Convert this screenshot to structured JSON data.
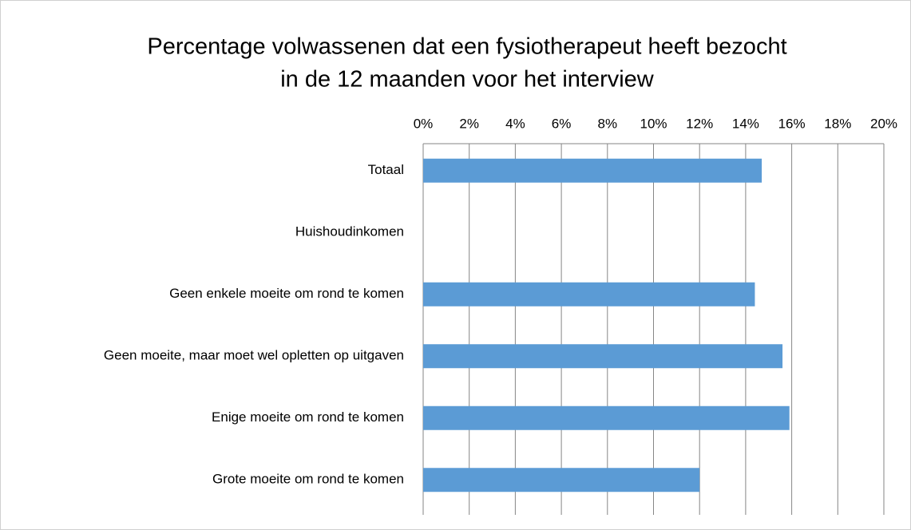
{
  "chart_data": {
    "type": "bar",
    "orientation": "horizontal",
    "title": [
      "Percentage volwassenen dat een fysiotherapeut heeft bezocht",
      "in de 12 maanden voor het interview"
    ],
    "categories": [
      "Totaal",
      "Huishoudinkomen",
      "Geen enkele moeite om rond te komen",
      "Geen moeite, maar moet wel opletten op uitgaven",
      "Enige moeite om rond te komen",
      "Grote moeite om rond te komen"
    ],
    "values": [
      14.7,
      null,
      14.4,
      15.6,
      15.9,
      12.0
    ],
    "color": "#5b9bd5",
    "xlim": [
      0,
      20
    ],
    "xticks": [
      {
        "value": 0,
        "label": "0%"
      },
      {
        "value": 2,
        "label": "2%"
      },
      {
        "value": 4,
        "label": "4%"
      },
      {
        "value": 6,
        "label": "6%"
      },
      {
        "value": 8,
        "label": "8%"
      },
      {
        "value": 10,
        "label": "10%"
      },
      {
        "value": 12,
        "label": "12%"
      },
      {
        "value": 14,
        "label": "14%"
      },
      {
        "value": 16,
        "label": "16%"
      },
      {
        "value": 18,
        "label": "18%"
      },
      {
        "value": 20,
        "label": "20%"
      }
    ],
    "grid": true
  }
}
